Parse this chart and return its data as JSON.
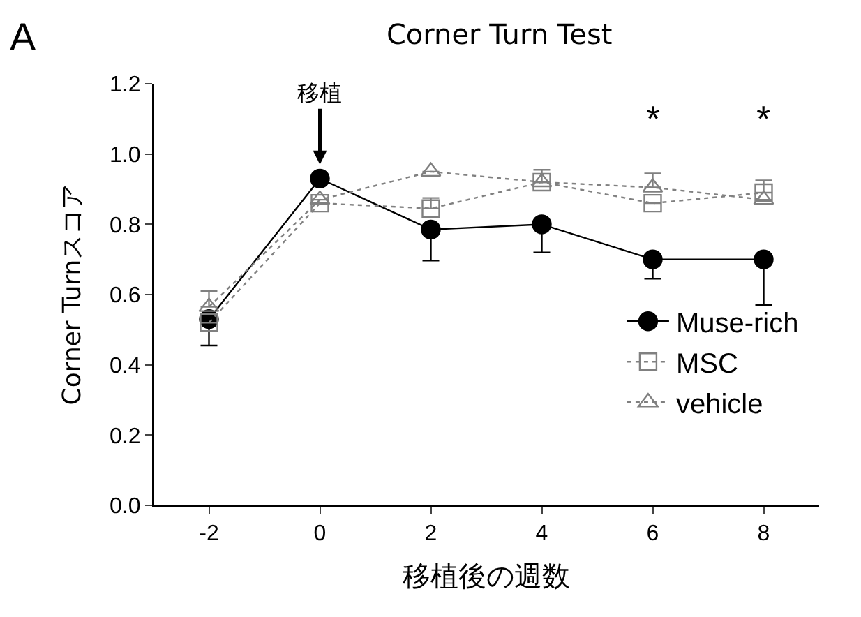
{
  "chart_data": {
    "type": "line",
    "title": "Corner Turn Test",
    "xlabel": "移植後の週数",
    "ylabel": "Corner Turnスコア",
    "x": [
      -2,
      0,
      2,
      4,
      6,
      8
    ],
    "series": [
      {
        "name": "Muse-rich",
        "color": "#000000",
        "marker": "circle",
        "line_style": "solid",
        "values": [
          0.53,
          0.93,
          0.785,
          0.8,
          0.7,
          0.7
        ],
        "errors": [
          [
            0.455,
            0.53
          ],
          null,
          [
            0.697,
            0.785
          ],
          [
            0.72,
            0.8
          ],
          [
            0.645,
            0.7
          ],
          [
            0.57,
            0.7
          ]
        ]
      },
      {
        "name": "MSC",
        "color": "#808080",
        "marker": "square",
        "line_style": "dotted",
        "values": [
          0.52,
          0.86,
          0.845,
          0.92,
          0.86,
          0.89
        ],
        "errors": [
          null,
          null,
          [
            0.845,
            0.875
          ],
          [
            0.92,
            0.955
          ],
          null,
          [
            0.89,
            0.925
          ]
        ]
      },
      {
        "name": "vehicle",
        "color": "#808080",
        "marker": "triangle",
        "line_style": "dotted",
        "values": [
          0.565,
          0.87,
          0.95,
          0.92,
          0.905,
          0.87
        ],
        "errors": [
          [
            0.565,
            0.61
          ],
          null,
          null,
          null,
          [
            0.905,
            0.945
          ],
          null
        ]
      }
    ],
    "xlim": [
      -3,
      9
    ],
    "xticks": [
      -2,
      0,
      2,
      4,
      6,
      8
    ],
    "ylim": [
      0,
      1.2
    ],
    "yticks": [
      {
        "value": 0,
        "label": "0.0"
      },
      {
        "value": 0.2,
        "label": "0.2"
      },
      {
        "value": 0.4,
        "label": "0.4"
      },
      {
        "value": 0.6,
        "label": "0.6"
      },
      {
        "value": 0.8,
        "label": "0.8"
      },
      {
        "value": 1,
        "label": "1.0"
      },
      {
        "value": 1.2,
        "label": "1.2"
      }
    ],
    "legend": "bottom right",
    "annotations": [
      "A",
      {
        "text": "移植",
        "x": 0,
        "y": 0.97
      },
      "*",
      "*"
    ]
  }
}
